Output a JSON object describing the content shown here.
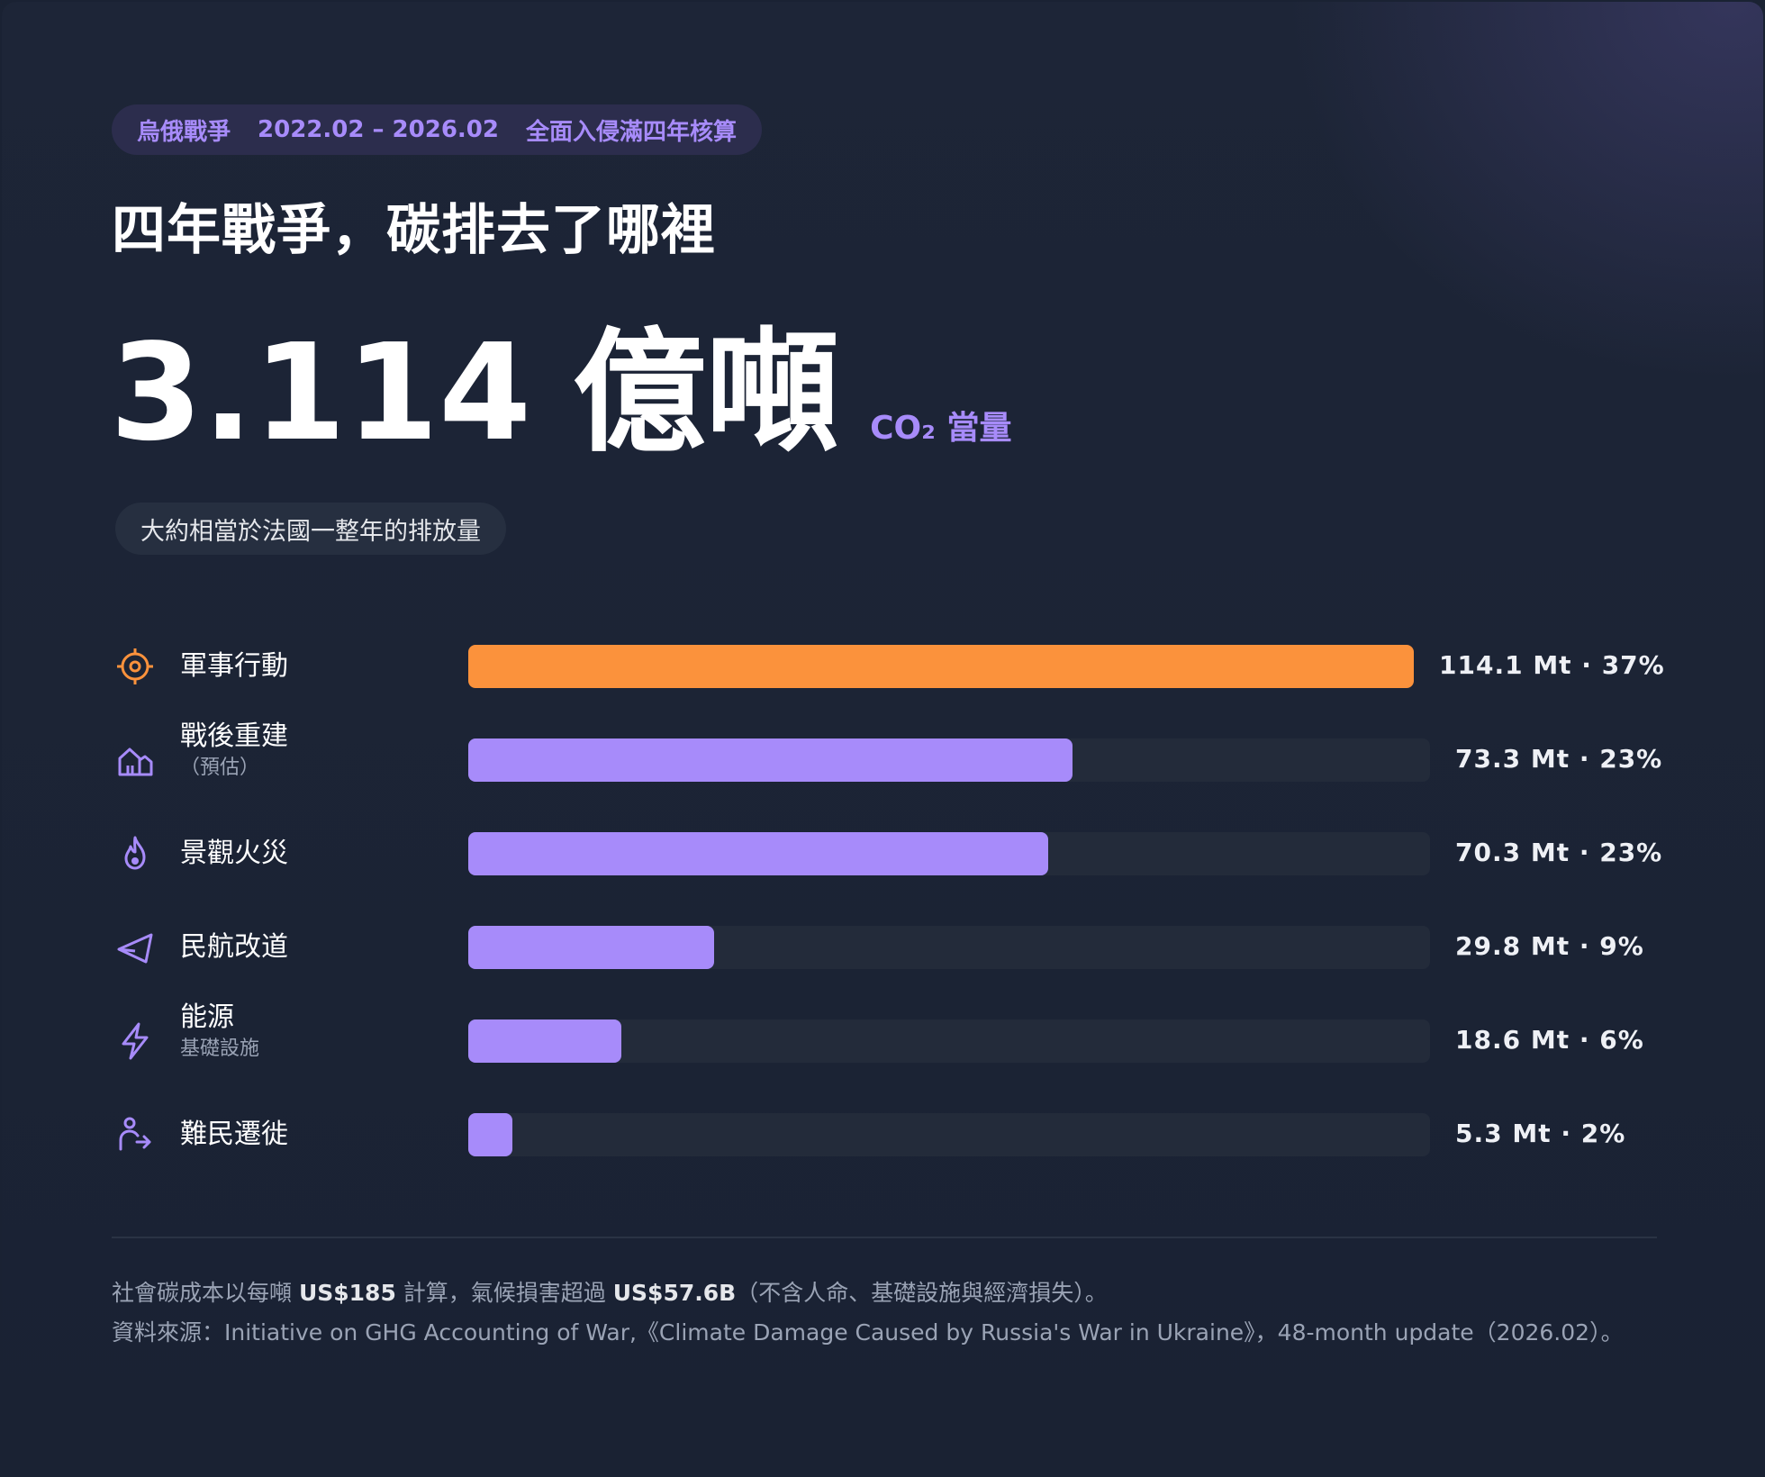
{
  "header": {
    "pill": [
      "烏俄戰爭",
      "2022.02 – 2026.02",
      "全面入侵滿四年核算"
    ],
    "title": "四年戰爭，碳排去了哪裡"
  },
  "headline": {
    "number": "3.114",
    "unit": "億噸",
    "suffix": "CO₂ 當量",
    "comparison": "大約相當於法國一整年的排放量"
  },
  "colors": {
    "accent_orange": "#fb923c",
    "accent_purple": "#a78bfa",
    "track": "#232b3a"
  },
  "chart_data": {
    "type": "bar",
    "orientation": "horizontal",
    "unit": "Mt",
    "xlim": [
      0,
      116
    ],
    "categories": [
      "軍事行動",
      "戰後重建",
      "景觀火災",
      "民航改道",
      "能源",
      "難民遷徙"
    ],
    "sublabels": [
      "",
      "（預估）",
      "",
      "",
      "基礎設施",
      ""
    ],
    "values": [
      114.1,
      73.3,
      70.3,
      29.8,
      18.6,
      5.3
    ],
    "percents": [
      "37%",
      "23%",
      "23%",
      "9%",
      "6%",
      "2%"
    ],
    "value_labels": [
      "114.1 Mt · 37%",
      "73.3 Mt · 23%",
      "70.3 Mt · 23%",
      "29.8 Mt · 9%",
      "18.6 Mt · 6%",
      "5.3 Mt · 2%"
    ],
    "icons": [
      "crosshair-icon",
      "house-icon",
      "flame-icon",
      "paper-plane-icon",
      "lightning-icon",
      "person-walking-icon"
    ],
    "highlight_index": 0
  },
  "footer": {
    "line1_a": "社會碳成本以每噸 ",
    "line1_b": "US$185",
    "line1_c": " 計算，氣候損害超過 ",
    "line1_d": "US$57.6B",
    "line1_e": "（不含人命、基礎設施與經濟損失）。",
    "line2": "資料來源：Initiative on GHG Accounting of War,《Climate Damage Caused by Russia's War in Ukraine》，48-month update（2026.02）。"
  }
}
